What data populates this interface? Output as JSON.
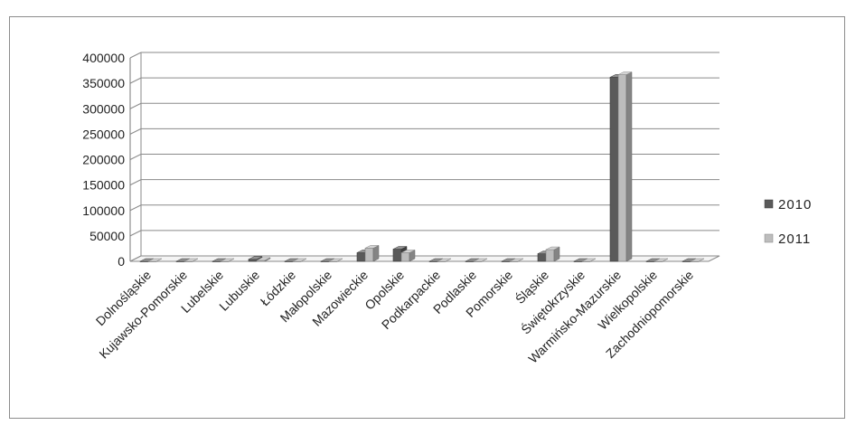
{
  "chart_data": {
    "type": "bar",
    "style": "3d-clustered-column",
    "categories": [
      "Dolnośląskie",
      "Kujawsko-Pomorskie",
      "Lubelskie",
      "Lubuskie",
      "Łódzkie",
      "Małopolskie",
      "Mazowieckie",
      "Opolskie",
      "Podkarpackie",
      "Podlaskie",
      "Pomorskie",
      "Śląskie",
      "Świętokrzyskie",
      "Warmińsko-Mazurskie",
      "Wielkopolskie",
      "Zachodniopomorskie"
    ],
    "series": [
      {
        "name": "2010",
        "color": "#5a5a5a",
        "values": [
          0,
          0,
          0,
          4000,
          0,
          0,
          17000,
          24000,
          0,
          0,
          0,
          15000,
          0,
          362000,
          0,
          0
        ]
      },
      {
        "name": "2011",
        "color": "#bdbdbd",
        "values": [
          0,
          0,
          0,
          2000,
          0,
          0,
          26000,
          17000,
          0,
          0,
          0,
          23000,
          0,
          367000,
          0,
          0
        ]
      }
    ],
    "ylim": [
      0,
      400000
    ],
    "yticks": [
      0,
      50000,
      100000,
      150000,
      200000,
      250000,
      300000,
      350000,
      400000
    ],
    "ytick_labels": [
      "0",
      "50000",
      "100000",
      "150000",
      "200000",
      "250000",
      "300000",
      "350000",
      "400000"
    ],
    "title": "",
    "xlabel": "",
    "ylabel": "",
    "grid": true,
    "legend_position": "right"
  }
}
